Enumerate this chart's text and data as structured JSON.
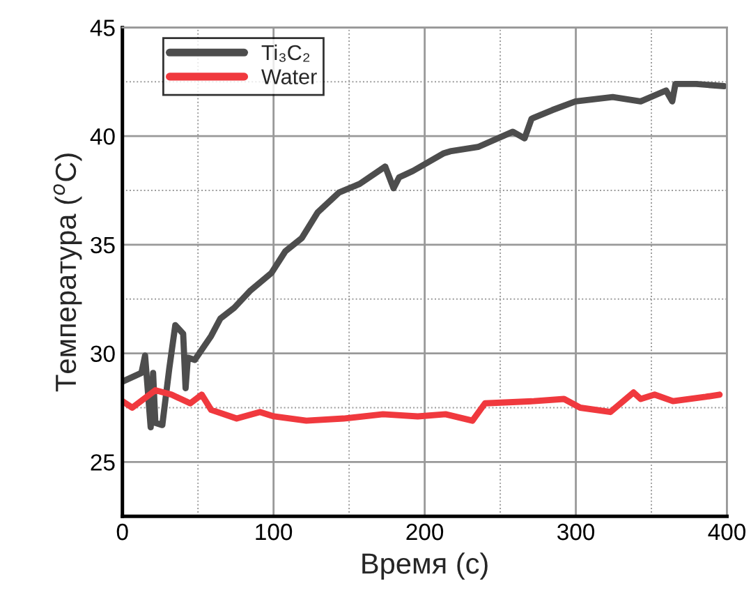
{
  "chart_data": {
    "type": "line",
    "xlabel": "Время (с)",
    "ylabel": "Температура ($^{o}$C)",
    "xlim": [
      0,
      400
    ],
    "ylim": [
      22.5,
      45
    ],
    "xticks": [
      0,
      {
        "value": 50,
        "label": null
      },
      100,
      {
        "value": 150,
        "label": null
      },
      200,
      {
        "value": 250,
        "label": null
      },
      300,
      {
        "value": 350,
        "label": null
      },
      400
    ],
    "yticks": [
      {
        "value": 22.5,
        "label": null
      },
      25,
      {
        "value": 27.5,
        "label": null
      },
      30,
      {
        "value": 32.5,
        "label": null
      },
      35,
      {
        "value": 37.5,
        "label": null
      },
      40,
      {
        "value": 42.5,
        "label": null
      },
      45
    ],
    "grid": true,
    "legend": "top left",
    "line_style": "solid",
    "marker": "none",
    "series": [
      {
        "name": "Ti₃C₂",
        "color": "#4d4d4d",
        "x": [
          0,
          12.6,
          15,
          18.7,
          20.3,
          21.8,
          26.4,
          31,
          35,
          40.2,
          41.8,
          43.3,
          47.9,
          58.7,
          64.8,
          74,
          84.8,
          98.6,
          107.8,
          118.6,
          129.3,
          143.2,
          157,
          173.9,
          179.4,
          183.1,
          192.3,
          212.3,
          216.9,
          235.3,
          258.3,
          266.1,
          270.7,
          284.5,
          299.8,
          324.4,
          342.9,
          359.7,
          363.8,
          365.9,
          379.7,
          398.2
        ],
        "values": [
          28.7,
          29.1,
          29.9,
          26.6,
          29.1,
          26.8,
          26.7,
          29.3,
          31.3,
          30.9,
          28.4,
          29.8,
          29.7,
          30.8,
          31.6,
          32.1,
          32.9,
          33.7,
          34.7,
          35.3,
          36.5,
          37.4,
          37.8,
          38.6,
          37.6,
          38.1,
          38.4,
          39.2,
          39.3,
          39.5,
          40.2,
          39.9,
          40.8,
          41.2,
          41.6,
          41.8,
          41.6,
          42.1,
          41.6,
          42.4,
          42.4,
          42.3
        ]
      },
      {
        "name": "Water",
        "color": "#f0393e",
        "x": [
          0,
          6.5,
          21.8,
          32.5,
          44.9,
          52.5,
          58.7,
          75.6,
          91,
          100.2,
          121.7,
          146.3,
          172.4,
          195.4,
          213.8,
          231.6,
          239.9,
          272.2,
          292.2,
          302.9,
          322.9,
          338.2,
          342.9,
          352.1,
          364.3,
          385.9,
          395.1
        ],
        "values": [
          27.8,
          27.5,
          28.3,
          28.1,
          27.7,
          28.1,
          27.4,
          27.0,
          27.3,
          27.1,
          26.9,
          27.0,
          27.2,
          27.1,
          27.2,
          26.9,
          27.7,
          27.8,
          27.9,
          27.5,
          27.3,
          28.2,
          27.9,
          28.1,
          27.8,
          28.0,
          28.1
        ]
      }
    ]
  }
}
